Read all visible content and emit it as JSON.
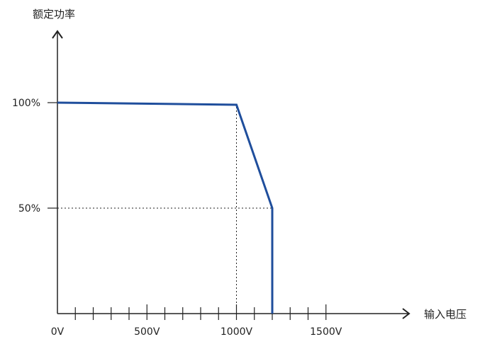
{
  "chart_data": {
    "type": "line",
    "ylabel": "额定功率",
    "xlabel": "输入电压",
    "x_ticks": [
      {
        "value": 0,
        "label": "0V"
      },
      {
        "value": 500,
        "label": "500V"
      },
      {
        "value": 1000,
        "label": "1000V"
      },
      {
        "value": 1500,
        "label": "1500V"
      }
    ],
    "x_minor_step": 100,
    "x_minor_max": 1500,
    "y_ticks": [
      {
        "value": 50,
        "label": "50%"
      },
      {
        "value": 100,
        "label": "100%"
      }
    ],
    "xlim": [
      0,
      1900
    ],
    "ylim": [
      0,
      200
    ],
    "series": [
      {
        "x": [
          0,
          1000,
          1200,
          1200
        ],
        "y": [
          100,
          99,
          50,
          0
        ],
        "color": "#1f4e9c"
      }
    ],
    "reference_lines": [
      {
        "type": "vertical",
        "x": 1000,
        "y": 99
      },
      {
        "type": "vertical",
        "x": 1200,
        "y": 50
      },
      {
        "type": "horizontal",
        "x": 1200,
        "y": 50
      }
    ],
    "axis_color": "#222222",
    "grid": false
  }
}
